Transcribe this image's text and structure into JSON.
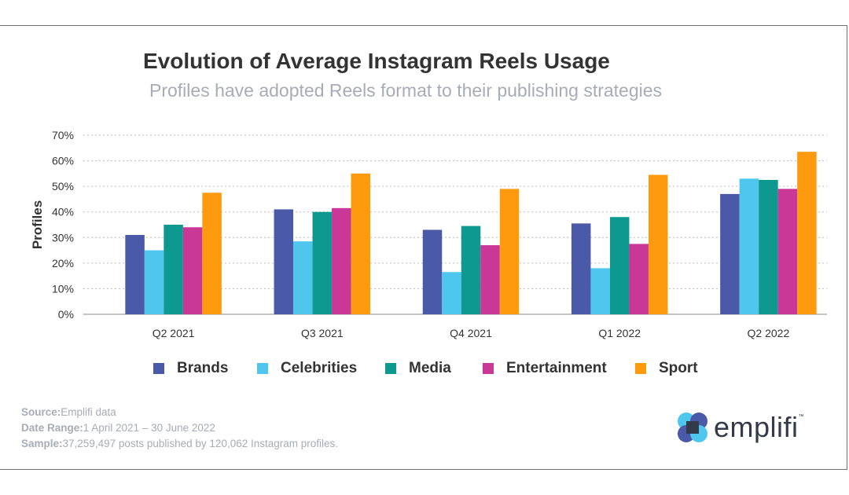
{
  "title": "Evolution of Average Instagram Reels Usage",
  "subtitle": "Profiles have adopted Reels format to their publishing strategies",
  "chart_data": {
    "type": "bar",
    "categories": [
      "Q2 2021",
      "Q3 2021",
      "Q4 2021",
      "Q1 2022",
      "Q2 2022"
    ],
    "series": [
      {
        "name": "Brands",
        "color": "#4b5aa8",
        "values": [
          31,
          41,
          33,
          35.5,
          47
        ]
      },
      {
        "name": "Celebrities",
        "color": "#4ec6ee",
        "values": [
          25,
          28.5,
          16.5,
          18,
          53
        ]
      },
      {
        "name": "Media",
        "color": "#0d9890",
        "values": [
          35,
          40,
          34.5,
          38,
          52.5
        ]
      },
      {
        "name": "Entertainment",
        "color": "#c93797",
        "values": [
          34,
          41.5,
          27,
          27.5,
          49
        ]
      },
      {
        "name": "Sport",
        "color": "#fd9a0d",
        "values": [
          47.5,
          55,
          49,
          54.5,
          63.5
        ]
      }
    ],
    "yticks": [
      "0%",
      "10%",
      "20%",
      "30%",
      "40%",
      "50%",
      "60%",
      "70%"
    ],
    "ylim": [
      0,
      70
    ],
    "ylabel": "Profiles",
    "xlabel": "",
    "grid": true,
    "legend_position": "bottom"
  },
  "footer": {
    "source_label": "Source:",
    "source_value": "Emplifi data",
    "range_label": "Date Range:",
    "range_value": "1 April 2021 – 30 June 2022",
    "sample_label": "Sample:",
    "sample_value": "37,259,497 posts published by 120,062 Instagram profiles."
  },
  "logo": {
    "text": "emplifi",
    "tm": "™",
    "colors": [
      "#4ec6ee",
      "#4b5aa8",
      "#333a4a"
    ]
  }
}
